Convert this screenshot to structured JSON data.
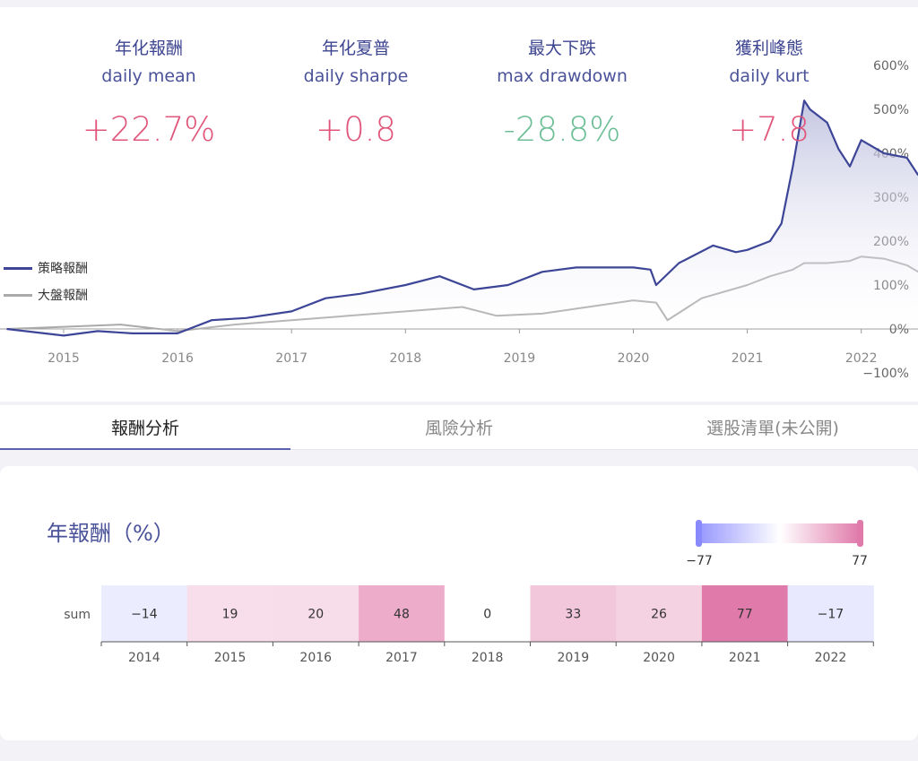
{
  "stats": [
    {
      "zh": "年化報酬",
      "en": "daily mean",
      "value": "+22.7%",
      "color": "#e05579"
    },
    {
      "zh": "年化夏普",
      "en": "daily sharpe",
      "value": "+0.8",
      "color": "#e05579"
    },
    {
      "zh": "最大下跌",
      "en": "max drawdown",
      "value": "-28.8%",
      "color": "#6cbe96"
    },
    {
      "zh": "獲利峰態",
      "en": "daily kurt",
      "value": "+7.8",
      "color": "#e05579"
    }
  ],
  "legend": {
    "strategy": "策略報酬",
    "benchmark": "大盤報酬"
  },
  "tabs": [
    "報酬分析",
    "風險分析",
    "選股清單(未公開)"
  ],
  "heatmap_title": "年報酬（%）",
  "chart_data": [
    {
      "type": "line",
      "x_ticks": [
        "2015",
        "2016",
        "2017",
        "2018",
        "2019",
        "2020",
        "2021",
        "2022"
      ],
      "y_ticks": [
        "600%",
        "500%",
        "400%",
        "300%",
        "200%",
        "100%",
        "0%",
        "−100%"
      ],
      "ylim": [
        -100,
        600
      ],
      "series": [
        {
          "name": "策略報酬",
          "color": "#3d4597",
          "x": [
            2014.5,
            2015.0,
            2015.3,
            2015.6,
            2016.0,
            2016.3,
            2016.6,
            2017.0,
            2017.3,
            2017.6,
            2018.0,
            2018.3,
            2018.6,
            2018.9,
            2019.2,
            2019.5,
            2019.8,
            2020.0,
            2020.15,
            2020.2,
            2020.4,
            2020.7,
            2020.9,
            2021.0,
            2021.2,
            2021.3,
            2021.4,
            2021.5,
            2021.55,
            2021.7,
            2021.8,
            2021.9,
            2022.0,
            2022.2,
            2022.4,
            2022.5
          ],
          "y": [
            0,
            -15,
            -5,
            -10,
            -10,
            20,
            25,
            40,
            70,
            80,
            100,
            120,
            90,
            100,
            130,
            140,
            140,
            140,
            135,
            100,
            150,
            190,
            175,
            180,
            200,
            240,
            370,
            520,
            500,
            470,
            410,
            370,
            430,
            400,
            390,
            350
          ]
        },
        {
          "name": "大盤報酬",
          "color": "#aaaaaa",
          "x": [
            2014.5,
            2015.0,
            2015.5,
            2016.0,
            2016.5,
            2017.0,
            2017.5,
            2018.0,
            2018.5,
            2018.8,
            2019.2,
            2019.6,
            2020.0,
            2020.2,
            2020.3,
            2020.6,
            2021.0,
            2021.2,
            2021.4,
            2021.5,
            2021.7,
            2021.9,
            2022.0,
            2022.2,
            2022.4,
            2022.5
          ],
          "y": [
            0,
            5,
            10,
            -5,
            10,
            20,
            30,
            40,
            50,
            30,
            35,
            50,
            65,
            60,
            20,
            70,
            100,
            120,
            135,
            150,
            150,
            155,
            165,
            160,
            145,
            130
          ]
        }
      ]
    },
    {
      "type": "heatmap",
      "row_label": "sum",
      "categories": [
        "2014",
        "2015",
        "2016",
        "2017",
        "2018",
        "2019",
        "2020",
        "2021",
        "2022"
      ],
      "values": [
        -14,
        19,
        20,
        48,
        0,
        33,
        26,
        77,
        -17
      ],
      "value_labels": [
        "−14",
        "19",
        "20",
        "48",
        "0",
        "33",
        "26",
        "77",
        "−17"
      ],
      "scale_min_label": "−77",
      "scale_max_label": "77",
      "scale_min": -77,
      "scale_max": 77,
      "colors": {
        "neg": "#9999ff",
        "mid": "#ffffff",
        "pos": "#e07aaa"
      }
    }
  ]
}
